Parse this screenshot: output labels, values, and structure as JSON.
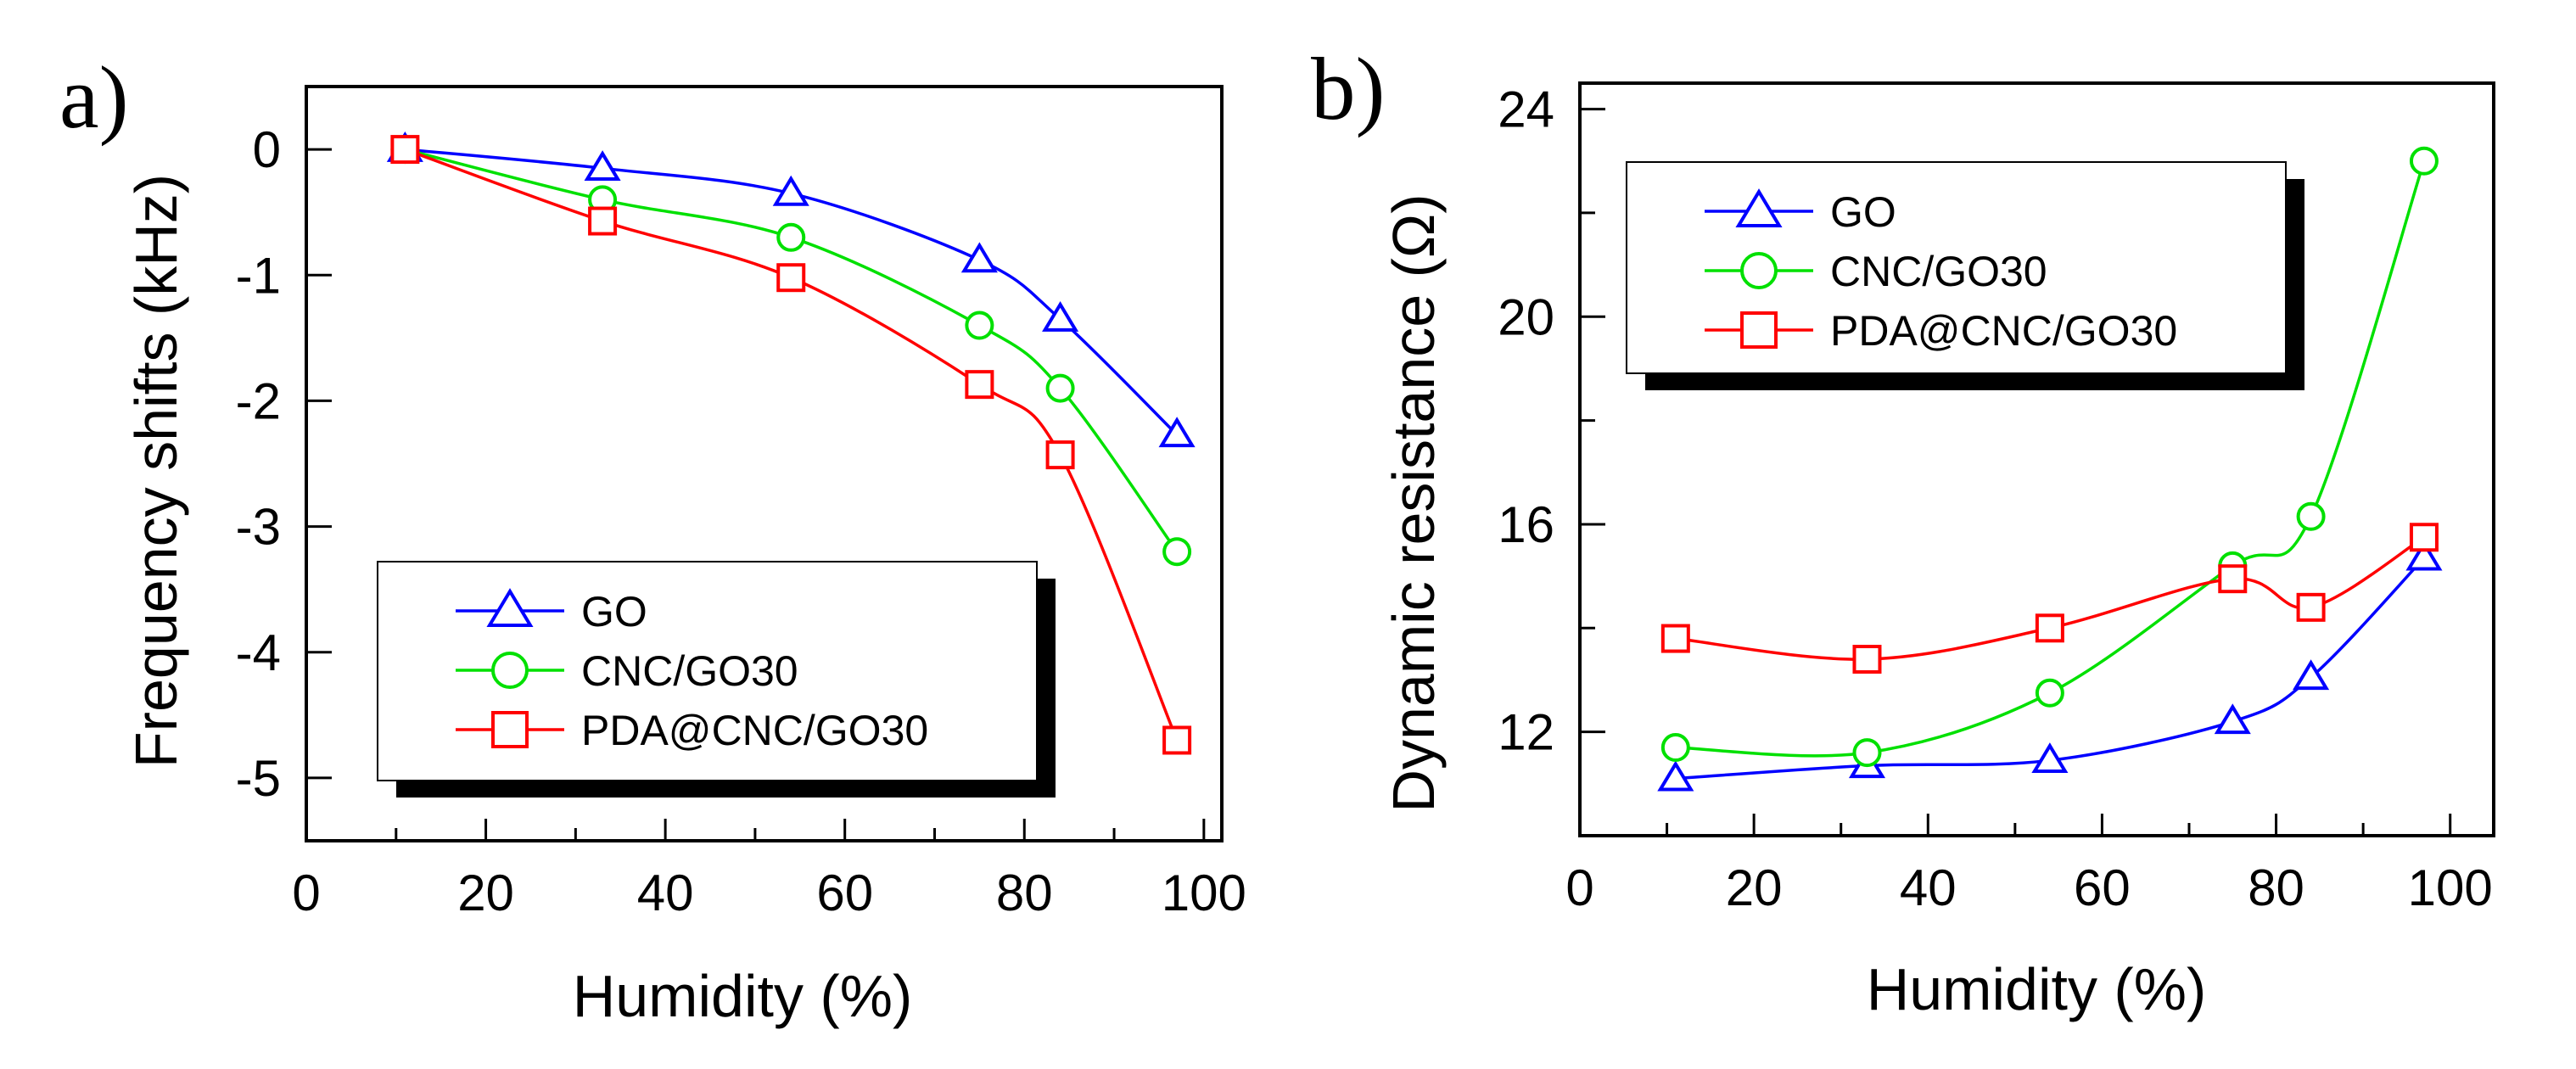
{
  "chart_data": [
    {
      "type": "line",
      "panel_label": "a)",
      "xlabel": "Humidity (%)",
      "ylabel": "Frequency shifts (kHz)",
      "xlim": [
        0,
        102
      ],
      "ylim": [
        -5.5,
        0.5
      ],
      "xticks": [
        "0",
        "20",
        "40",
        "60",
        "80",
        "100"
      ],
      "yticks": [
        "0",
        "-1",
        "-2",
        "-3",
        "-4",
        "-5"
      ],
      "grid": false,
      "legend_position": "bottom-center",
      "x": [
        11,
        33,
        54,
        75,
        84,
        97
      ],
      "series": [
        {
          "name": "GO",
          "color": "#0000ff",
          "marker": "triangle",
          "values": [
            0,
            -0.15,
            -0.35,
            -0.88,
            -1.35,
            -2.27
          ]
        },
        {
          "name": "CNC/GO30",
          "color": "#00e000",
          "marker": "circle",
          "values": [
            0,
            -0.4,
            -0.7,
            -1.4,
            -1.9,
            -3.2
          ]
        },
        {
          "name": "PDA@CNC/GO30",
          "color": "#ff0000",
          "marker": "square",
          "values": [
            0,
            -0.57,
            -1.02,
            -1.87,
            -2.43,
            -4.7
          ]
        }
      ]
    },
    {
      "type": "line",
      "panel_label": "b)",
      "xlabel": "Humidity (%)",
      "ylabel": "Dynamic resistance (Ω)",
      "xlim": [
        0,
        105
      ],
      "ylim": [
        10,
        24.5
      ],
      "xticks": [
        "0",
        "20",
        "40",
        "60",
        "80",
        "100"
      ],
      "yticks": [
        "12",
        "16",
        "20",
        "24"
      ],
      "grid": false,
      "legend_position": "top-left",
      "x": [
        11,
        33,
        54,
        75,
        84,
        97
      ],
      "series": [
        {
          "name": "GO",
          "color": "#0000ff",
          "marker": "triangle",
          "values": [
            11.1,
            11.35,
            11.45,
            12.2,
            13.05,
            15.35
          ]
        },
        {
          "name": "CNC/GO30",
          "color": "#00e000",
          "marker": "circle",
          "values": [
            11.7,
            11.6,
            12.75,
            15.2,
            16.15,
            23.0
          ]
        },
        {
          "name": "PDA@CNC/GO30",
          "color": "#ff0000",
          "marker": "square",
          "values": [
            13.8,
            13.4,
            14.0,
            14.95,
            14.4,
            15.75
          ]
        }
      ]
    }
  ]
}
